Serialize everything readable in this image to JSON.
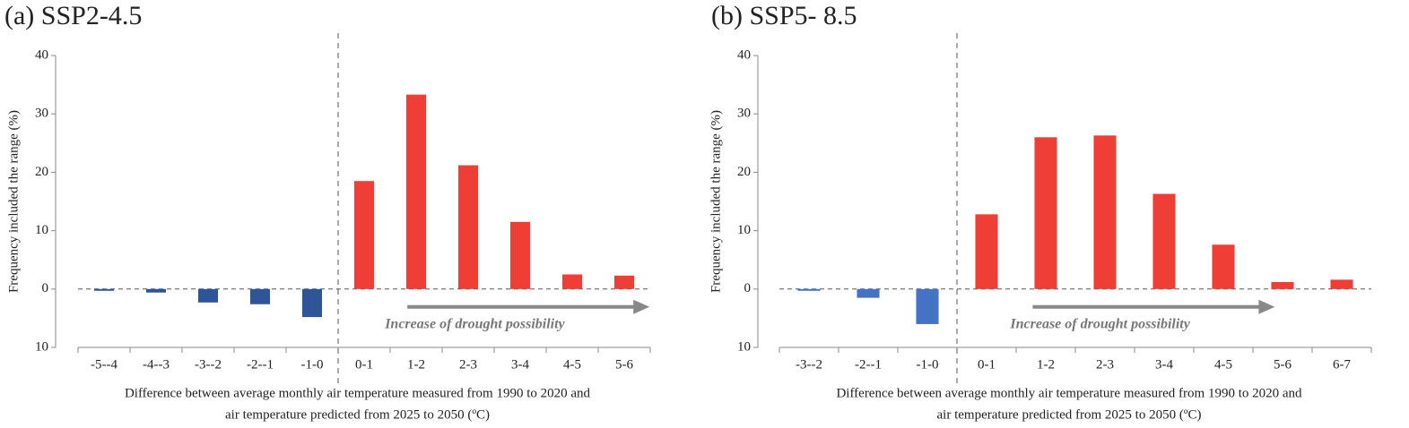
{
  "chart_data": [
    {
      "type": "bar",
      "title": "(a) SSP2-4.5",
      "y_label": "Frequency included the range (%)",
      "x_label": [
        "Difference between average monthly air temperature measured from 1990 to 2020 and",
        "air temperature predicted from 2025 to 2050 (ºC)"
      ],
      "annotation": "Increase of drought possibility",
      "categories": [
        "-5--4",
        "-4--3",
        "-3--2",
        "-2--1",
        "-1-0",
        "0-1",
        "1-2",
        "2-3",
        "3-4",
        "4-5",
        "5-6"
      ],
      "values": [
        -0.3,
        -0.6,
        -2.3,
        -2.6,
        -4.8,
        18.5,
        33.3,
        21.2,
        11.5,
        2.5,
        2.3
      ],
      "color": "#ef3e36",
      "negative_color": "#2e5597",
      "ylim": [
        -10,
        40
      ],
      "yticks": [
        {
          "value": -10,
          "label": "10"
        },
        0,
        10,
        20,
        30,
        40
      ]
    },
    {
      "type": "bar",
      "title": "(b) SSP5- 8.5",
      "y_label": "Frequency included the range (%)",
      "x_label": [
        "Difference between average monthly air temperature measured from 1990 to 2020 and",
        "air temperature predicted from 2025 to 2050 (ºC)"
      ],
      "annotation": "Increase of drought possibility",
      "categories": [
        "-3--2",
        "-2--1",
        "-1-0",
        "0-1",
        "1-2",
        "2-3",
        "3-4",
        "4-5",
        "5-6",
        "6-7"
      ],
      "values": [
        -0.3,
        -1.5,
        -6.0,
        12.8,
        26.0,
        26.3,
        16.3,
        7.6,
        1.2,
        1.6
      ],
      "color": "#ef3e36",
      "negative_color": "#4472c4",
      "ylim": [
        -10,
        40
      ],
      "yticks": [
        {
          "value": -10,
          "label": "10"
        },
        0,
        10,
        20,
        30,
        40
      ]
    }
  ]
}
